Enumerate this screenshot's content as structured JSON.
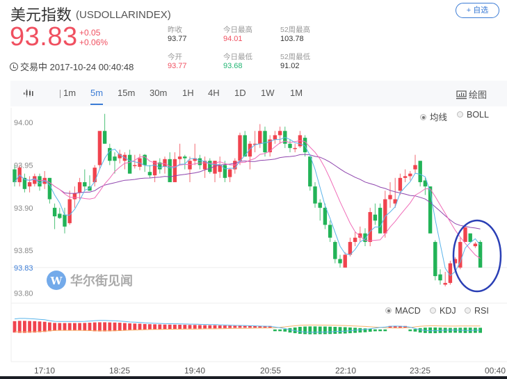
{
  "header": {
    "name": "美元指数",
    "code": "(USDOLLARINDEX)",
    "watch_button": "+ 自选",
    "price": "93.83",
    "change": "+0.05",
    "change_pct": "+0.06%",
    "status": "交易中 2017-10-24 00:40:48",
    "stats": [
      {
        "label": "昨收",
        "value": "93.77",
        "color": "neutral"
      },
      {
        "label": "今日最高",
        "value": "94.01",
        "color": "red"
      },
      {
        "label": "52周最高",
        "value": "103.78",
        "color": "neutral"
      },
      {
        "label": "今开",
        "value": "93.77",
        "color": "red"
      },
      {
        "label": "今日最低",
        "value": "93.68",
        "color": "green"
      },
      {
        "label": "52周最低",
        "value": "91.02",
        "color": "neutral"
      }
    ]
  },
  "toolbar": {
    "chart_type_icon": "candlestick-icon",
    "periods": [
      "1m",
      "5m",
      "15m",
      "30m",
      "1H",
      "4H",
      "1D",
      "1W",
      "1M"
    ],
    "active_period": "5m",
    "draw_label": "绘图",
    "draw_icon": "chart-draw-icon"
  },
  "overlay_options": {
    "ma_label": "均线",
    "boll_label": "BOLL",
    "selected": "均线"
  },
  "indicator_options": {
    "macd_label": "MACD",
    "kdj_label": "KDJ",
    "rsi_label": "RSI",
    "selected": "MACD"
  },
  "watermark": "华尔街见闻",
  "colors": {
    "up": "#f0434e",
    "down": "#22b357",
    "ma_short": "#5ab4ea",
    "ma_mid": "#f06cb8",
    "ma_long": "#8e44ad",
    "accent": "#3a7bd5",
    "dif": "#5ab4ea",
    "dea": "#f7b26b",
    "annotation_circle": "#2a3fb5"
  },
  "chart_data": [
    {
      "type": "candlestick",
      "title": "美元指数 USDOLLARINDEX 5m",
      "xlabel": "",
      "ylabel": "",
      "ylim": [
        93.79,
        94.02
      ],
      "y_ticks": [
        "94.00",
        "93.95",
        "93.90",
        "93.85",
        "93.83",
        "93.80"
      ],
      "current_price_label": "93.83",
      "x_ticks": [
        "17:10",
        "18:25",
        "19:40",
        "20:55",
        "22:10",
        "23:25",
        "00:40"
      ],
      "legend": [
        "均线",
        "BOLL"
      ],
      "series_description": "Price ~93.93 at 16:55, dips to ~93.89 near 17:10, rallies to ~94.00 around 18:00, ranges 93.94-93.99 through 21:20, sells off to ~93.83 near 22:10, rebounds to ~93.96 near 23:35, falls to ~93.81 near 00:15, recovers to ~93.84 at 00:40; annotated with blue circle at end",
      "ohlc": [
        [
          93.945,
          93.95,
          93.925,
          93.93
        ],
        [
          93.93,
          93.95,
          93.925,
          93.947
        ],
        [
          93.935,
          93.94,
          93.918,
          93.922
        ],
        [
          93.925,
          93.937,
          93.918,
          93.93
        ],
        [
          93.928,
          93.94,
          93.925,
          93.937
        ],
        [
          93.937,
          93.94,
          93.92,
          93.925
        ],
        [
          93.928,
          93.943,
          93.922,
          93.935
        ],
        [
          93.935,
          93.935,
          93.905,
          93.91
        ],
        [
          93.9,
          93.905,
          93.875,
          93.89
        ],
        [
          93.893,
          93.9,
          93.887,
          93.888
        ],
        [
          93.892,
          93.9,
          93.87,
          93.878
        ],
        [
          93.882,
          93.92,
          93.88,
          93.91
        ],
        [
          93.91,
          93.925,
          93.9,
          93.917
        ],
        [
          93.918,
          93.935,
          93.91,
          93.93
        ],
        [
          93.93,
          93.945,
          93.92,
          93.925
        ],
        [
          93.925,
          93.938,
          93.92,
          93.92
        ],
        [
          93.93,
          93.95,
          93.925,
          93.947
        ],
        [
          93.95,
          93.98,
          93.945,
          93.99
        ],
        [
          93.99,
          94.01,
          93.975,
          93.975
        ],
        [
          93.97,
          93.975,
          93.95,
          93.955
        ],
        [
          93.96,
          93.965,
          93.94,
          93.955
        ],
        [
          93.958,
          93.968,
          93.952,
          93.963
        ],
        [
          93.955,
          93.965,
          93.945,
          93.962
        ],
        [
          93.962,
          93.968,
          93.94,
          93.94
        ],
        [
          93.95,
          93.962,
          93.946,
          93.95
        ],
        [
          93.948,
          93.963,
          93.944,
          93.958
        ],
        [
          93.962,
          93.963,
          93.942,
          93.95
        ],
        [
          93.942,
          93.95,
          93.935,
          93.938
        ],
        [
          93.938,
          93.955,
          93.93,
          93.955
        ],
        [
          93.953,
          93.958,
          93.94,
          93.945
        ],
        [
          93.948,
          93.96,
          93.94,
          93.957
        ],
        [
          93.957,
          93.965,
          93.935,
          93.93
        ],
        [
          93.93,
          93.965,
          93.93,
          93.957
        ],
        [
          93.957,
          93.975,
          93.95,
          93.96
        ],
        [
          93.96,
          93.962,
          93.945,
          93.958
        ],
        [
          93.945,
          93.96,
          93.93,
          93.955
        ],
        [
          93.955,
          93.975,
          93.95,
          93.958
        ],
        [
          93.958,
          93.962,
          93.945,
          93.95
        ],
        [
          93.945,
          93.96,
          93.935,
          93.955
        ],
        [
          93.955,
          93.958,
          93.94,
          93.942
        ],
        [
          93.94,
          93.955,
          93.93,
          93.955
        ],
        [
          93.942,
          93.96,
          93.935,
          93.95
        ],
        [
          93.95,
          93.955,
          93.93,
          93.935
        ],
        [
          93.936,
          93.946,
          93.93,
          93.945
        ],
        [
          93.945,
          93.958,
          93.94,
          93.955
        ],
        [
          93.955,
          93.988,
          93.95,
          93.985
        ],
        [
          93.985,
          93.99,
          93.96,
          93.96
        ],
        [
          93.96,
          93.978,
          93.945,
          93.975
        ],
        [
          93.975,
          93.99,
          93.965,
          93.975
        ],
        [
          93.975,
          93.998,
          93.97,
          93.99
        ],
        [
          93.99,
          93.995,
          93.96,
          93.965
        ],
        [
          93.965,
          93.985,
          93.96,
          93.98
        ],
        [
          93.98,
          93.99,
          93.975,
          93.985
        ],
        [
          93.985,
          93.995,
          93.975,
          93.99
        ],
        [
          93.99,
          93.995,
          93.97,
          93.975
        ],
        [
          93.975,
          93.98,
          93.965,
          93.97
        ],
        [
          93.97,
          93.975,
          93.965,
          93.97
        ],
        [
          93.972,
          93.99,
          93.97,
          93.985
        ],
        [
          93.982,
          93.985,
          93.96,
          93.965
        ],
        [
          93.96,
          93.96,
          93.92,
          93.925
        ],
        [
          93.925,
          93.93,
          93.9,
          93.905
        ],
        [
          93.906,
          93.91,
          93.885,
          93.9
        ],
        [
          93.9,
          93.905,
          93.875,
          93.88
        ],
        [
          93.88,
          93.885,
          93.86,
          93.865
        ],
        [
          93.86,
          93.862,
          93.835,
          93.84
        ],
        [
          93.84,
          93.845,
          93.83,
          93.835
        ],
        [
          93.83,
          93.848,
          93.83,
          93.845
        ],
        [
          93.845,
          93.865,
          93.843,
          93.86
        ],
        [
          93.86,
          93.872,
          93.855,
          93.865
        ],
        [
          93.865,
          93.878,
          93.86,
          93.87
        ],
        [
          93.87,
          93.876,
          93.855,
          93.86
        ],
        [
          93.86,
          93.9,
          93.855,
          93.895
        ],
        [
          93.892,
          93.905,
          93.88,
          93.885
        ],
        [
          93.9,
          93.905,
          93.87,
          93.87
        ],
        [
          93.87,
          93.92,
          93.865,
          93.91
        ],
        [
          93.91,
          93.93,
          93.9,
          93.915
        ],
        [
          93.905,
          93.935,
          93.9,
          93.91
        ],
        [
          93.92,
          93.94,
          93.915,
          93.935
        ],
        [
          93.935,
          93.945,
          93.93,
          93.937
        ],
        [
          93.937,
          93.943,
          93.932,
          93.94
        ],
        [
          93.945,
          93.962,
          93.94,
          93.95
        ],
        [
          93.955,
          93.955,
          93.925,
          93.93
        ],
        [
          93.932,
          93.935,
          93.915,
          93.925
        ],
        [
          93.925,
          93.925,
          93.87,
          93.87
        ],
        [
          93.86,
          93.862,
          93.815,
          93.82
        ],
        [
          93.822,
          93.828,
          93.81,
          93.815
        ],
        [
          93.81,
          93.825,
          93.808,
          93.812
        ],
        [
          93.812,
          93.838,
          93.81,
          93.835
        ],
        [
          93.835,
          93.842,
          93.825,
          93.84
        ],
        [
          93.83,
          93.865,
          93.828,
          93.86
        ],
        [
          93.86,
          93.878,
          93.86,
          93.877
        ],
        [
          93.87,
          93.87,
          93.86,
          93.86
        ],
        [
          93.855,
          93.86,
          93.853,
          93.858
        ],
        [
          93.86,
          93.862,
          93.83,
          93.83
        ]
      ]
    },
    {
      "type": "bar",
      "title": "MACD",
      "legend": [
        "MACD",
        "KDJ",
        "RSI"
      ],
      "x_ticks": [
        "17:10",
        "18:25",
        "19:40",
        "20:55",
        "22:10",
        "23:25",
        "00:40"
      ],
      "series_description": "Histogram positive (red) decaying from 16:55 to ~21:40, negative (green) from ~21:45 to 23:10 with trough near 22:20, briefly positive near 23:30, negative again from ~23:50 to 00:40; DIF (blue) and DEA (orange) lines hover near zero",
      "histogram": [
        0.9,
        0.95,
        0.95,
        0.92,
        0.9,
        0.85,
        0.8,
        0.7,
        0.62,
        0.6,
        0.6,
        0.6,
        0.6,
        0.6,
        0.62,
        0.65,
        0.7,
        0.72,
        0.72,
        0.7,
        0.68,
        0.65,
        0.6,
        0.55,
        0.52,
        0.5,
        0.45,
        0.42,
        0.4,
        0.38,
        0.36,
        0.35,
        0.34,
        0.33,
        0.32,
        0.3,
        0.3,
        0.28,
        0.26,
        0.25,
        0.25,
        0.22,
        0.2,
        0.18,
        0.16,
        0.15,
        0.14,
        0.12,
        0.1,
        0.08,
        0.06,
        0.05,
        -0.02,
        -0.1,
        -0.2,
        -0.35,
        -0.45,
        -0.55,
        -0.6,
        -0.62,
        -0.62,
        -0.6,
        -0.6,
        -0.58,
        -0.55,
        -0.52,
        -0.5,
        -0.45,
        -0.4,
        -0.35,
        -0.3,
        -0.22,
        -0.15,
        -0.08,
        -0.02,
        0.05,
        0.08,
        0.06,
        0.03,
        -0.05,
        -0.2,
        -0.35,
        -0.42,
        -0.45,
        -0.45,
        -0.42,
        -0.4,
        -0.38,
        -0.38,
        -0.4,
        -0.42,
        -0.42,
        -0.4,
        -0.4
      ]
    }
  ]
}
